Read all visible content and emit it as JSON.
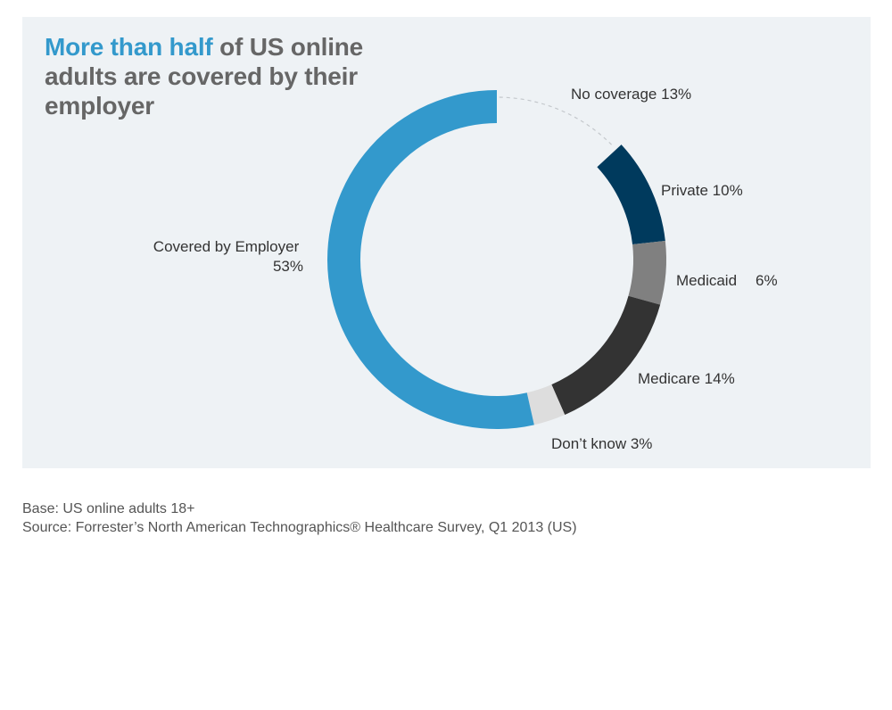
{
  "title": {
    "highlight": "More than half",
    "rest": " of US online adults are covered by their employer"
  },
  "chart_data": {
    "type": "pie",
    "variant": "donut",
    "slices": [
      {
        "label": "No coverage",
        "value_text": "13%",
        "value": 13,
        "color": "#eef2f5",
        "style": "dashed-outline"
      },
      {
        "label": "Private",
        "value_text": "10%",
        "value": 10,
        "color": "#003a5d"
      },
      {
        "label": "Medicaid",
        "value_text": "6%",
        "value": 6,
        "color": "#808080"
      },
      {
        "label": "Medicare",
        "value_text": "14%",
        "value": 14,
        "color": "#333333"
      },
      {
        "label": "Don’t know",
        "value_text": "3%",
        "value": 3,
        "color": "#dddddd"
      },
      {
        "label": "Covered by Employer",
        "value_text": "53%",
        "value": 53,
        "color": "#3399cc"
      }
    ]
  },
  "footnotes": {
    "base": "Base: US online adults 18+",
    "source": "Source: Forrester’s North American Technographics® Healthcare Survey, Q1 2013 (US)"
  }
}
